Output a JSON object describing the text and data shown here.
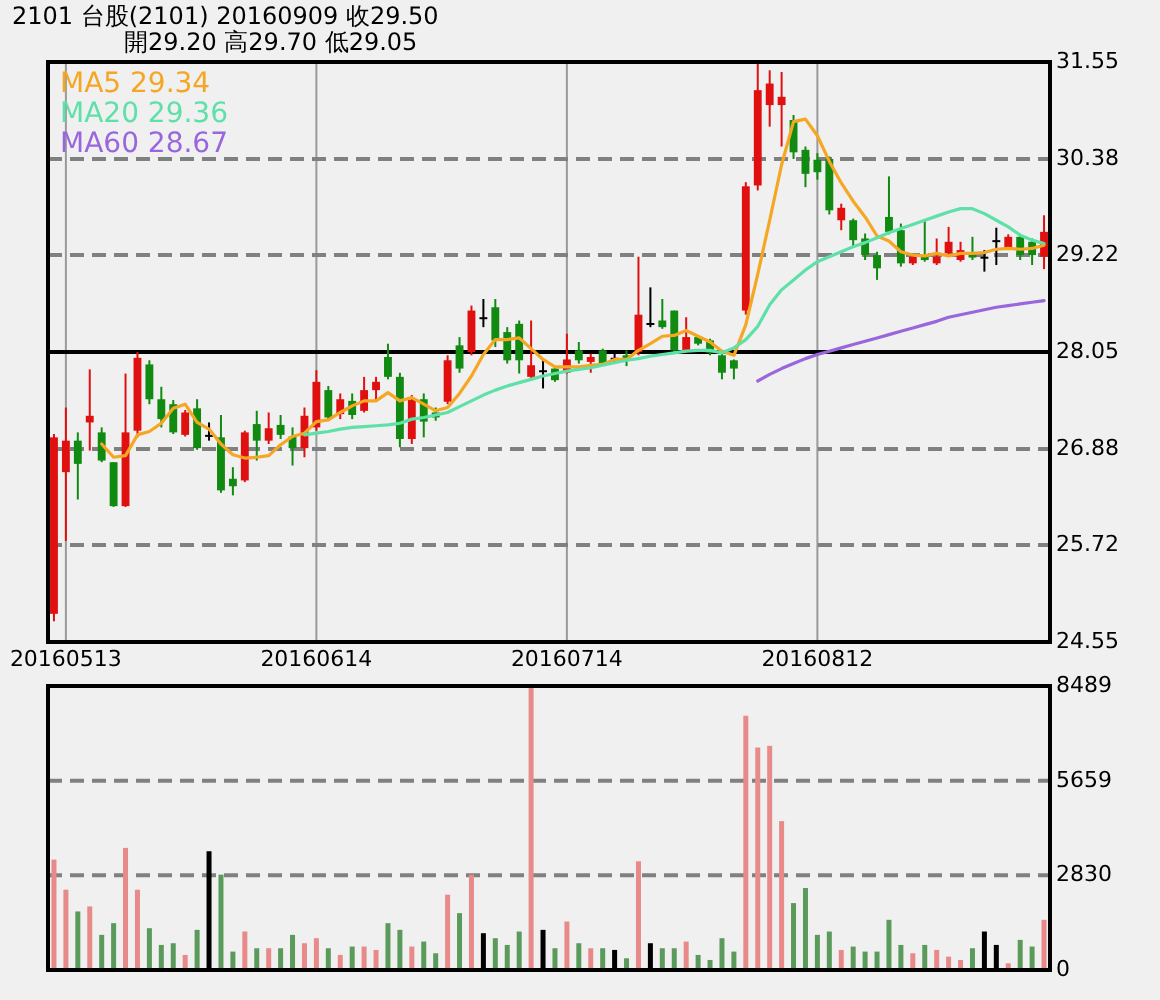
{
  "chart_data": [
    {
      "type": "candlestick",
      "title": "2101  台股(2101) 20160909  收29.50",
      "subtitle": "開29.20  高29.70  低29.05",
      "categories": [
        null,
        "20160513",
        null,
        null,
        null,
        null,
        null,
        null,
        null,
        null,
        null,
        null,
        null,
        null,
        null,
        null,
        null,
        null,
        null,
        null,
        null,
        null,
        "20160614",
        null,
        null,
        null,
        null,
        null,
        null,
        null,
        null,
        null,
        null,
        null,
        null,
        null,
        null,
        null,
        null,
        null,
        null,
        null,
        null,
        "20160714",
        null,
        null,
        null,
        null,
        null,
        null,
        null,
        null,
        null,
        null,
        null,
        null,
        null,
        null,
        null,
        null,
        null,
        null,
        null,
        null,
        "20160812",
        null,
        null,
        null,
        null,
        null,
        null,
        null,
        null,
        null,
        null,
        null,
        null,
        null,
        null,
        null,
        null,
        null,
        null,
        null
      ],
      "ohlc": [
        [
          24.89,
          27.06,
          24.8,
          27.02
        ],
        [
          26.6,
          27.38,
          25.77,
          26.98
        ],
        [
          26.98,
          27.08,
          26.27,
          26.7
        ],
        [
          27.2,
          27.84,
          26.86,
          27.28
        ],
        [
          27.08,
          27.14,
          26.72,
          26.74
        ],
        [
          26.72,
          26.72,
          26.18,
          26.19
        ],
        [
          26.19,
          27.79,
          26.18,
          27.08
        ],
        [
          27.1,
          28.05,
          27.02,
          27.98
        ],
        [
          27.9,
          27.95,
          27.42,
          27.48
        ],
        [
          27.48,
          27.63,
          27.14,
          27.24
        ],
        [
          27.42,
          27.47,
          27.06,
          27.08
        ],
        [
          27.05,
          27.35,
          27.03,
          27.32
        ],
        [
          27.37,
          27.48,
          26.87,
          26.89
        ],
        [
          27.05,
          27.2,
          26.98,
          27.05
        ],
        [
          27.02,
          27.29,
          26.35,
          26.38
        ],
        [
          26.52,
          26.66,
          26.32,
          26.43
        ],
        [
          26.5,
          27.1,
          26.48,
          27.08
        ],
        [
          27.18,
          27.34,
          26.74,
          26.98
        ],
        [
          26.98,
          27.32,
          26.94,
          27.13
        ],
        [
          27.17,
          27.29,
          27.0,
          27.05
        ],
        [
          27.03,
          27.14,
          26.68,
          26.89
        ],
        [
          26.89,
          27.38,
          26.78,
          27.28
        ],
        [
          27.14,
          27.83,
          27.1,
          27.69
        ],
        [
          27.59,
          27.64,
          27.22,
          27.26
        ],
        [
          27.3,
          27.55,
          27.24,
          27.48
        ],
        [
          27.46,
          27.55,
          27.24,
          27.29
        ],
        [
          27.34,
          27.75,
          27.32,
          27.59
        ],
        [
          27.59,
          27.75,
          27.47,
          27.69
        ],
        [
          27.99,
          28.15,
          27.72,
          27.75
        ],
        [
          27.75,
          27.8,
          26.9,
          27.0
        ],
        [
          27.0,
          27.53,
          26.94,
          27.47
        ],
        [
          27.48,
          27.55,
          27.02,
          27.21
        ],
        [
          27.32,
          27.38,
          27.22,
          27.26
        ],
        [
          27.45,
          28.01,
          27.42,
          27.95
        ],
        [
          28.13,
          28.23,
          27.8,
          27.85
        ],
        [
          28.05,
          28.61,
          28.01,
          28.55
        ],
        [
          28.47,
          28.69,
          28.35,
          28.47
        ],
        [
          28.59,
          28.69,
          28.11,
          28.19
        ],
        [
          28.29,
          28.35,
          27.91,
          27.95
        ],
        [
          28.39,
          28.43,
          27.79,
          27.95
        ],
        [
          27.75,
          28.43,
          27.72,
          27.89
        ],
        [
          27.83,
          27.96,
          27.61,
          27.83
        ],
        [
          27.85,
          27.88,
          27.69,
          27.71
        ],
        [
          27.8,
          28.27,
          27.79,
          27.96
        ],
        [
          28.07,
          28.17,
          27.91,
          27.95
        ],
        [
          27.93,
          28.03,
          27.8,
          27.99
        ],
        [
          28.07,
          28.09,
          27.88,
          27.91
        ],
        [
          27.98,
          28.06,
          27.91,
          27.98
        ],
        [
          28.01,
          28.07,
          27.88,
          27.95
        ],
        [
          28.05,
          29.2,
          28.01,
          28.5
        ],
        [
          28.4,
          28.83,
          28.35,
          28.4
        ],
        [
          28.43,
          28.69,
          28.33,
          28.35
        ],
        [
          28.55,
          28.55,
          28.04,
          28.07
        ],
        [
          28.07,
          28.47,
          28.04,
          28.23
        ],
        [
          28.23,
          28.25,
          28.13,
          28.15
        ],
        [
          28.19,
          28.21,
          28.01,
          28.04
        ],
        [
          28.01,
          28.03,
          27.72,
          27.8
        ],
        [
          27.95,
          27.96,
          27.72,
          27.85
        ],
        [
          28.55,
          30.1,
          28.5,
          30.05
        ],
        [
          30.06,
          31.53,
          30.0,
          31.21
        ],
        [
          31.03,
          31.45,
          30.77,
          31.29
        ],
        [
          31.03,
          31.43,
          30.53,
          31.13
        ],
        [
          30.85,
          30.91,
          30.38,
          30.46
        ],
        [
          30.49,
          30.53,
          30.04,
          30.2
        ],
        [
          30.37,
          30.45,
          30.13,
          30.22
        ],
        [
          30.38,
          30.41,
          29.71,
          29.76
        ],
        [
          29.64,
          29.84,
          29.52,
          29.79
        ],
        [
          29.64,
          29.66,
          29.32,
          29.4
        ],
        [
          29.42,
          29.48,
          29.16,
          29.22
        ],
        [
          29.22,
          29.26,
          28.92,
          29.06
        ],
        [
          29.68,
          30.17,
          29.47,
          29.5
        ],
        [
          29.52,
          29.6,
          29.08,
          29.12
        ],
        [
          29.12,
          29.22,
          29.1,
          29.2
        ],
        [
          29.22,
          29.64,
          29.14,
          29.16
        ],
        [
          29.12,
          29.42,
          29.1,
          29.2
        ],
        [
          29.24,
          29.56,
          29.2,
          29.38
        ],
        [
          29.16,
          29.38,
          29.14,
          29.28
        ],
        [
          29.24,
          29.44,
          29.16,
          29.19
        ],
        [
          29.2,
          29.28,
          29.02,
          29.2
        ],
        [
          29.4,
          29.55,
          29.1,
          29.4
        ],
        [
          29.31,
          29.47,
          29.28,
          29.44
        ],
        [
          29.44,
          29.47,
          29.16,
          29.22
        ],
        [
          29.38,
          29.42,
          29.1,
          29.22
        ],
        [
          29.2,
          29.7,
          29.05,
          29.5
        ]
      ],
      "colors": [
        "#e01010",
        "#e01010",
        "#108a10",
        "#e01010",
        "#108a10",
        "#108a10",
        "#e01010",
        "#e01010",
        "#108a10",
        "#108a10",
        "#108a10",
        "#e01010",
        "#108a10",
        "#000000",
        "#108a10",
        "#108a10",
        "#e01010",
        "#108a10",
        "#e01010",
        "#108a10",
        "#108a10",
        "#e01010",
        "#e01010",
        "#108a10",
        "#e01010",
        "#108a10",
        "#e01010",
        "#e01010",
        "#108a10",
        "#108a10",
        "#e01010",
        "#108a10",
        "#108a10",
        "#e01010",
        "#108a10",
        "#e01010",
        "#000000",
        "#108a10",
        "#108a10",
        "#108a10",
        "#e01010",
        "#000000",
        "#108a10",
        "#e01010",
        "#108a10",
        "#e01010",
        "#108a10",
        "#000000",
        "#108a10",
        "#e01010",
        "#000000",
        "#108a10",
        "#108a10",
        "#e01010",
        "#108a10",
        "#108a10",
        "#108a10",
        "#108a10",
        "#e01010",
        "#e01010",
        "#e01010",
        "#e01010",
        "#108a10",
        "#108a10",
        "#108a10",
        "#108a10",
        "#e01010",
        "#108a10",
        "#108a10",
        "#108a10",
        "#108a10",
        "#108a10",
        "#e01010",
        "#108a10",
        "#e01010",
        "#e01010",
        "#e01010",
        "#108a10",
        "#000000",
        "#000000",
        "#e01010",
        "#108a10",
        "#108a10",
        "#e01010"
      ],
      "series": [
        {
          "name": "MA5 29.34",
          "type": "line",
          "color": "#f5a623",
          "values": [
            null,
            null,
            null,
            null,
            26.94,
            26.78,
            26.8,
            27.05,
            27.09,
            27.19,
            27.37,
            27.42,
            27.2,
            27.12,
            26.94,
            26.81,
            26.77,
            26.78,
            26.8,
            26.93,
            27.03,
            27.07,
            27.21,
            27.23,
            27.32,
            27.4,
            27.46,
            27.46,
            27.56,
            27.46,
            27.5,
            27.42,
            27.34,
            27.38,
            27.55,
            27.76,
            28.02,
            28.2,
            28.2,
            28.22,
            28.09,
            27.96,
            27.87,
            27.87,
            27.87,
            27.89,
            27.9,
            27.96,
            27.96,
            28.07,
            28.15,
            28.24,
            28.25,
            28.31,
            28.24,
            28.17,
            28.06,
            28.01,
            28.38,
            28.99,
            29.64,
            30.31,
            30.83,
            30.86,
            30.66,
            30.35,
            30.09,
            29.87,
            29.68,
            29.45,
            29.39,
            29.26,
            29.22,
            29.21,
            29.24,
            29.21,
            29.24,
            29.24,
            29.25,
            29.29,
            29.3,
            29.29,
            29.3,
            29.34
          ]
        },
        {
          "name": "MA20 29.36",
          "type": "line",
          "color": "#5fe0a8",
          "values": [
            null,
            null,
            null,
            null,
            null,
            null,
            null,
            null,
            null,
            null,
            null,
            null,
            null,
            null,
            null,
            null,
            null,
            null,
            null,
            null,
            null,
            27.05,
            27.07,
            27.09,
            27.12,
            27.14,
            27.15,
            27.16,
            27.17,
            27.19,
            27.24,
            27.26,
            27.29,
            27.32,
            27.39,
            27.46,
            27.53,
            27.59,
            27.64,
            27.68,
            27.72,
            27.76,
            27.79,
            27.82,
            27.84,
            27.86,
            27.89,
            27.92,
            27.95,
            27.97,
            28.0,
            28.02,
            28.04,
            28.06,
            28.07,
            28.07,
            28.04,
            28.1,
            28.2,
            28.36,
            28.62,
            28.8,
            28.92,
            29.04,
            29.14,
            29.2,
            29.26,
            29.32,
            29.37,
            29.43,
            29.49,
            29.54,
            29.59,
            29.64,
            29.69,
            29.74,
            29.78,
            29.78,
            29.72,
            29.64,
            29.56,
            29.46,
            29.4,
            29.36
          ]
        },
        {
          "name": "MA60 28.67",
          "type": "line",
          "color": "#9966dd",
          "values": [
            null,
            null,
            null,
            null,
            null,
            null,
            null,
            null,
            null,
            null,
            null,
            null,
            null,
            null,
            null,
            null,
            null,
            null,
            null,
            null,
            null,
            null,
            null,
            null,
            null,
            null,
            null,
            null,
            null,
            null,
            null,
            null,
            null,
            null,
            null,
            null,
            null,
            null,
            null,
            null,
            null,
            null,
            null,
            null,
            null,
            null,
            null,
            null,
            null,
            null,
            null,
            null,
            null,
            null,
            null,
            null,
            null,
            null,
            null,
            27.7,
            27.78,
            27.85,
            27.91,
            27.97,
            28.02,
            28.06,
            28.1,
            28.14,
            28.18,
            28.22,
            28.26,
            28.3,
            28.34,
            28.38,
            28.42,
            28.47,
            28.5,
            28.53,
            28.56,
            28.59,
            28.61,
            28.63,
            28.65,
            28.67
          ]
        }
      ],
      "ylim": [
        24.55,
        31.55
      ],
      "yticks": [
        24.55,
        25.72,
        26.88,
        28.05,
        29.22,
        30.38,
        31.55
      ],
      "ref_lines": [
        {
          "axis": "y",
          "value": 28.05,
          "color": "#000000"
        }
      ],
      "grid": true,
      "legend": "top left"
    },
    {
      "type": "bar",
      "categories": [
        null,
        null,
        null,
        null,
        null,
        null,
        null,
        null,
        null,
        null,
        null,
        null,
        null,
        null,
        null,
        null,
        null,
        null,
        null,
        null,
        null,
        null,
        null,
        null,
        null,
        null,
        null,
        null,
        null,
        null,
        null,
        null,
        null,
        null,
        null,
        null,
        null,
        null,
        null,
        null,
        null,
        null,
        null,
        null,
        null,
        null,
        null,
        null,
        null,
        null,
        null,
        null,
        null,
        null,
        null,
        null,
        null,
        null,
        null,
        null,
        null,
        null,
        null,
        null,
        null,
        null,
        null,
        null,
        null,
        null,
        null,
        null,
        null,
        null,
        null,
        null,
        null,
        null,
        null,
        null,
        null,
        null,
        null,
        null
      ],
      "values": [
        3300,
        2400,
        1750,
        1900,
        1050,
        1400,
        3650,
        2400,
        1250,
        750,
        800,
        450,
        1200,
        3550,
        2850,
        550,
        1150,
        650,
        650,
        650,
        1050,
        800,
        950,
        650,
        450,
        700,
        700,
        600,
        1400,
        1200,
        700,
        850,
        500,
        2250,
        1700,
        2850,
        1100,
        950,
        750,
        1150,
        8489,
        1200,
        650,
        1450,
        800,
        650,
        650,
        600,
        350,
        3250,
        800,
        650,
        650,
        850,
        450,
        300,
        950,
        550,
        7600,
        6650,
        6700,
        4450,
        2000,
        2450,
        1050,
        1150,
        600,
        700,
        550,
        550,
        1500,
        750,
        500,
        750,
        600,
        400,
        300,
        650,
        1150,
        750,
        200,
        900,
        700,
        1500
      ],
      "colors": [
        "#e88a8a",
        "#e88a8a",
        "#5a9a5a",
        "#e88a8a",
        "#5a9a5a",
        "#5a9a5a",
        "#e88a8a",
        "#e88a8a",
        "#5a9a5a",
        "#5a9a5a",
        "#5a9a5a",
        "#e88a8a",
        "#5a9a5a",
        "#000000",
        "#5a9a5a",
        "#5a9a5a",
        "#e88a8a",
        "#5a9a5a",
        "#e88a8a",
        "#5a9a5a",
        "#5a9a5a",
        "#e88a8a",
        "#e88a8a",
        "#5a9a5a",
        "#e88a8a",
        "#5a9a5a",
        "#e88a8a",
        "#e88a8a",
        "#5a9a5a",
        "#5a9a5a",
        "#e88a8a",
        "#5a9a5a",
        "#5a9a5a",
        "#e88a8a",
        "#5a9a5a",
        "#e88a8a",
        "#000000",
        "#5a9a5a",
        "#5a9a5a",
        "#5a9a5a",
        "#e88a8a",
        "#000000",
        "#5a9a5a",
        "#e88a8a",
        "#5a9a5a",
        "#e88a8a",
        "#5a9a5a",
        "#000000",
        "#5a9a5a",
        "#e88a8a",
        "#000000",
        "#5a9a5a",
        "#5a9a5a",
        "#e88a8a",
        "#5a9a5a",
        "#5a9a5a",
        "#5a9a5a",
        "#5a9a5a",
        "#e88a8a",
        "#e88a8a",
        "#e88a8a",
        "#e88a8a",
        "#5a9a5a",
        "#5a9a5a",
        "#5a9a5a",
        "#5a9a5a",
        "#e88a8a",
        "#5a9a5a",
        "#5a9a5a",
        "#5a9a5a",
        "#5a9a5a",
        "#5a9a5a",
        "#e88a8a",
        "#5a9a5a",
        "#e88a8a",
        "#e88a8a",
        "#e88a8a",
        "#5a9a5a",
        "#000000",
        "#000000",
        "#e88a8a",
        "#5a9a5a",
        "#5a9a5a",
        "#e88a8a"
      ],
      "ylim": [
        0,
        8489
      ],
      "yticks": [
        0,
        2830,
        5659,
        8489
      ],
      "grid": "y",
      "tick_labels": "y"
    }
  ]
}
